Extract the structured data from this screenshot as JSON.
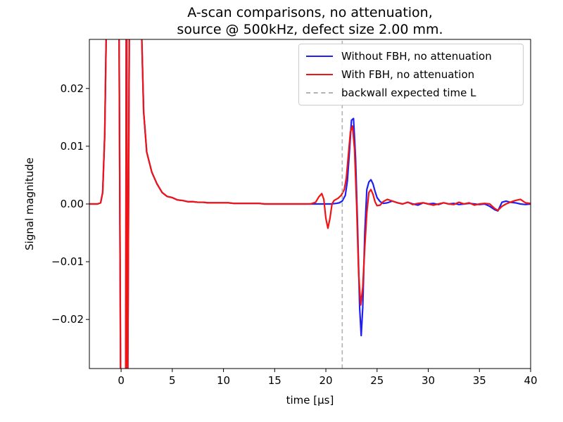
{
  "chart_data": {
    "type": "line",
    "title_lines": [
      "A-scan comparisons, no attenuation,",
      "source @ 500kHz, defect size 2.00 mm."
    ],
    "xlabel": "time [µs]",
    "ylabel": "Signal magnitude",
    "xlim": [
      -3.1,
      40
    ],
    "ylim": [
      -0.0285,
      0.0285
    ],
    "xticks": [
      0,
      5,
      10,
      15,
      20,
      25,
      30,
      35,
      40
    ],
    "xtick_labels": [
      "0",
      "5",
      "10",
      "15",
      "20",
      "25",
      "30",
      "35",
      "40"
    ],
    "yticks": [
      -0.02,
      -0.01,
      0.0,
      0.01,
      0.02
    ],
    "ytick_labels": [
      "−0.02",
      "−0.01",
      "0.00",
      "0.01",
      "0.02"
    ],
    "legend_position": "top-right",
    "series": [
      {
        "name": "Without FBH, no attenuation",
        "color": "#1f1ff5",
        "style": "solid",
        "x": [
          -3.1,
          -2.3,
          -2.0,
          -1.8,
          -1.6,
          -1.45,
          -1.35,
          -0.9,
          -0.4,
          -0.2,
          -0.05,
          0.1,
          0.3,
          0.45,
          0.5,
          0.55,
          0.6,
          0.65,
          0.8,
          1.2,
          1.7,
          2.0,
          2.2,
          2.5,
          3.0,
          3.5,
          4.0,
          4.5,
          5.0,
          5.5,
          6.0,
          6.5,
          7.0,
          7.5,
          8.0,
          8.5,
          9.0,
          9.5,
          10.0,
          10.5,
          11.0,
          11.5,
          12.0,
          12.5,
          13.0,
          13.5,
          14.0,
          14.5,
          15.0,
          15.5,
          16.0,
          16.5,
          17.0,
          17.5,
          18.0,
          18.5,
          19.0,
          19.5,
          20.0,
          20.5,
          21.0,
          21.3,
          21.6,
          21.9,
          22.1,
          22.3,
          22.5,
          22.7,
          22.9,
          23.1,
          23.3,
          23.45,
          23.6,
          23.8,
          24.0,
          24.2,
          24.4,
          24.6,
          24.8,
          25.0,
          25.3,
          25.6,
          26.0,
          26.5,
          27.0,
          27.5,
          28.0,
          28.5,
          29.0,
          29.5,
          30.0,
          30.5,
          31.0,
          31.5,
          32.0,
          32.5,
          33.0,
          33.5,
          34.0,
          34.5,
          35.0,
          35.5,
          36.0,
          36.5,
          36.8,
          37.2,
          37.6,
          38.0,
          38.5,
          39.0,
          39.5,
          40.0
        ],
        "y": [
          0.0,
          0.0,
          0.0002,
          0.002,
          0.012,
          0.03,
          0.03,
          0.03,
          0.03,
          0.03,
          -0.03,
          -0.03,
          -0.03,
          -0.03,
          0.03,
          0.03,
          -0.03,
          -0.03,
          0.03,
          0.03,
          0.03,
          0.03,
          0.016,
          0.009,
          0.0055,
          0.0035,
          0.002,
          0.0013,
          0.0011,
          0.0007,
          0.0006,
          0.0004,
          0.0004,
          0.0003,
          0.0003,
          0.0002,
          0.0002,
          0.0002,
          0.0002,
          0.0002,
          0.0001,
          0.0001,
          0.0001,
          0.0001,
          0.0001,
          0.0001,
          0.0,
          0.0,
          0.0,
          0.0,
          0.0,
          0.0,
          0.0,
          0.0,
          0.0,
          0.0,
          0.0,
          0.0,
          0.0,
          0.0,
          0.0001,
          0.0002,
          0.0005,
          0.0015,
          0.004,
          0.009,
          0.0145,
          0.0148,
          0.008,
          -0.004,
          -0.018,
          -0.0228,
          -0.018,
          -0.005,
          0.0025,
          0.0038,
          0.0042,
          0.0035,
          0.0022,
          0.0011,
          0.0004,
          0.0001,
          0.0002,
          0.0005,
          0.0002,
          0.0,
          0.0003,
          0.0,
          -0.0002,
          0.0002,
          0.0,
          0.0001,
          -0.0001,
          0.0002,
          0.0,
          0.0001,
          -0.0001,
          0.0,
          0.0001,
          0.0,
          -0.0001,
          0.0,
          -0.0004,
          -0.001,
          -0.0012,
          0.0003,
          0.0005,
          0.0003,
          0.0002,
          0.0,
          -0.0001,
          0.0
        ]
      },
      {
        "name": "With FBH, no attenuation",
        "color": "#f01414",
        "style": "solid",
        "x": [
          -3.1,
          -2.3,
          -2.0,
          -1.8,
          -1.6,
          -1.45,
          -1.35,
          -0.9,
          -0.4,
          -0.2,
          -0.05,
          0.1,
          0.3,
          0.45,
          0.5,
          0.55,
          0.6,
          0.65,
          0.8,
          1.2,
          1.7,
          2.0,
          2.2,
          2.5,
          3.0,
          3.5,
          4.0,
          4.5,
          5.0,
          5.5,
          6.0,
          6.5,
          7.0,
          7.5,
          8.0,
          8.5,
          9.0,
          9.5,
          10.0,
          10.5,
          11.0,
          11.5,
          12.0,
          12.5,
          13.0,
          13.5,
          14.0,
          14.5,
          15.0,
          15.5,
          16.0,
          16.5,
          17.0,
          17.5,
          18.0,
          18.5,
          19.0,
          19.3,
          19.6,
          19.8,
          20.0,
          20.2,
          20.4,
          20.6,
          20.8,
          21.0,
          21.2,
          21.5,
          21.8,
          22.0,
          22.2,
          22.4,
          22.6,
          22.8,
          23.0,
          23.2,
          23.4,
          23.6,
          23.8,
          24.0,
          24.2,
          24.4,
          24.6,
          24.8,
          25.0,
          25.3,
          25.6,
          26.0,
          26.5,
          27.0,
          27.5,
          28.0,
          28.5,
          29.0,
          29.5,
          30.0,
          30.5,
          31.0,
          31.5,
          32.0,
          32.5,
          33.0,
          33.5,
          34.0,
          34.5,
          35.0,
          35.5,
          36.0,
          36.5,
          36.8,
          37.2,
          37.6,
          38.0,
          38.5,
          39.0,
          39.5,
          40.0
        ],
        "y": [
          0.0,
          0.0,
          0.0002,
          0.002,
          0.012,
          0.03,
          0.03,
          0.03,
          0.03,
          0.03,
          -0.03,
          -0.03,
          -0.03,
          -0.03,
          0.03,
          0.03,
          -0.03,
          -0.03,
          0.03,
          0.03,
          0.03,
          0.03,
          0.016,
          0.009,
          0.0055,
          0.0035,
          0.002,
          0.0013,
          0.0011,
          0.0007,
          0.0006,
          0.0004,
          0.0004,
          0.0003,
          0.0003,
          0.0002,
          0.0002,
          0.0002,
          0.0002,
          0.0002,
          0.0001,
          0.0001,
          0.0001,
          0.0001,
          0.0001,
          0.0001,
          0.0,
          0.0,
          0.0,
          0.0,
          0.0,
          0.0,
          0.0,
          0.0,
          0.0,
          0.0,
          0.0003,
          0.0012,
          0.0018,
          0.0008,
          -0.0025,
          -0.0042,
          -0.0025,
          0.0,
          0.0006,
          0.0008,
          0.001,
          0.0015,
          0.0025,
          0.0045,
          0.0085,
          0.0125,
          0.0135,
          0.0095,
          0.0,
          -0.012,
          -0.0175,
          -0.0145,
          -0.0075,
          -0.0015,
          0.002,
          0.0025,
          0.0017,
          0.0004,
          -0.0003,
          -0.0002,
          0.0004,
          0.0008,
          0.0005,
          0.0002,
          0.0,
          0.0003,
          -0.0001,
          0.0001,
          0.0002,
          0.0,
          -0.0002,
          0.0,
          0.0002,
          0.0,
          -0.0001,
          0.0003,
          0.0,
          0.0002,
          -0.0002,
          0.0,
          0.0001,
          0.0,
          -0.0008,
          -0.0011,
          -0.0004,
          0.0,
          0.0003,
          0.0006,
          0.0008,
          0.0002,
          0.0001
        ]
      },
      {
        "name": "backwall expected time L",
        "color": "#b3b3b3",
        "style": "dashed",
        "x": [
          21.6,
          21.6
        ],
        "y": [
          -0.0285,
          0.0285
        ]
      }
    ]
  }
}
